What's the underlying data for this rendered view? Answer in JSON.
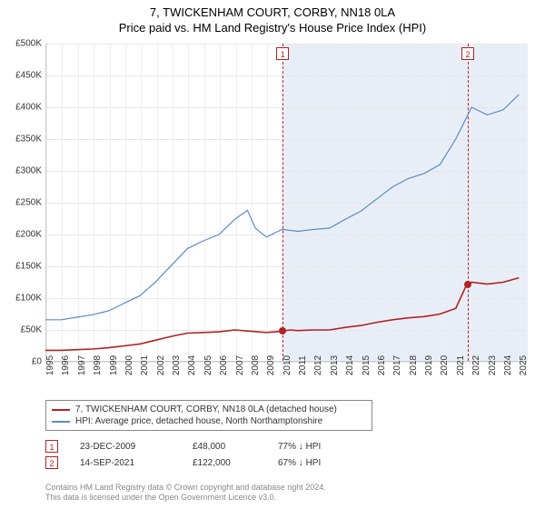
{
  "title": "7, TWICKENHAM COURT, CORBY, NN18 0LA",
  "subtitle": "Price paid vs. HM Land Registry's House Price Index (HPI)",
  "chart": {
    "type": "line",
    "background_color": "#ffffff",
    "shade_color": "#e8eef7",
    "grid_color": "#e6e6e6",
    "axis_color": "#cccccc",
    "x_min": 1995,
    "x_max": 2025.5,
    "x_ticks": [
      1995,
      1996,
      1997,
      1998,
      1999,
      2000,
      2001,
      2002,
      2003,
      2004,
      2005,
      2006,
      2007,
      2008,
      2009,
      2010,
      2011,
      2012,
      2013,
      2014,
      2015,
      2016,
      2017,
      2018,
      2019,
      2020,
      2021,
      2022,
      2023,
      2024,
      2025
    ],
    "y_min": 0,
    "y_max": 500000,
    "y_ticks": [
      0,
      50000,
      100000,
      150000,
      200000,
      250000,
      300000,
      350000,
      400000,
      450000,
      500000
    ],
    "y_tick_labels": [
      "£0",
      "£50K",
      "£100K",
      "£150K",
      "£200K",
      "£250K",
      "£300K",
      "£350K",
      "£400K",
      "£450K",
      "£500K"
    ],
    "shade_start_year": 2010,
    "shade_end_year": 2025.5,
    "label_fontsize": 10,
    "title_fontsize": 13,
    "series": [
      {
        "name": "hpi",
        "label": "HPI: Average price, detached house, North Northamptonshire",
        "color": "#5b8bc9",
        "width": 1.2,
        "points": [
          [
            1995,
            66000
          ],
          [
            1996,
            66000
          ],
          [
            1997,
            70000
          ],
          [
            1998,
            74000
          ],
          [
            1999,
            80000
          ],
          [
            2000,
            92000
          ],
          [
            2001,
            104000
          ],
          [
            2002,
            126000
          ],
          [
            2003,
            152000
          ],
          [
            2004,
            178000
          ],
          [
            2005,
            190000
          ],
          [
            2006,
            200000
          ],
          [
            2007,
            224000
          ],
          [
            2007.8,
            238000
          ],
          [
            2008.3,
            210000
          ],
          [
            2009,
            196000
          ],
          [
            2010,
            208000
          ],
          [
            2011,
            205000
          ],
          [
            2012,
            208000
          ],
          [
            2013,
            210000
          ],
          [
            2014,
            224000
          ],
          [
            2015,
            237000
          ],
          [
            2016,
            256000
          ],
          [
            2017,
            275000
          ],
          [
            2018,
            288000
          ],
          [
            2019,
            296000
          ],
          [
            2020,
            310000
          ],
          [
            2021,
            350000
          ],
          [
            2022,
            400000
          ],
          [
            2023,
            388000
          ],
          [
            2024,
            396000
          ],
          [
            2025,
            420000
          ]
        ]
      },
      {
        "name": "property",
        "label": "7, TWICKENHAM COURT, CORBY, NN18 0LA (detached house)",
        "color": "#b22222",
        "width": 1.6,
        "points": [
          [
            1995,
            18000
          ],
          [
            1996,
            18000
          ],
          [
            1997,
            19000
          ],
          [
            1998,
            20000
          ],
          [
            1999,
            22000
          ],
          [
            2000,
            25000
          ],
          [
            2001,
            28000
          ],
          [
            2002,
            34000
          ],
          [
            2003,
            40000
          ],
          [
            2004,
            45000
          ],
          [
            2005,
            46000
          ],
          [
            2006,
            47000
          ],
          [
            2007,
            50000
          ],
          [
            2008,
            48000
          ],
          [
            2009,
            46000
          ],
          [
            2009.98,
            48000
          ],
          [
            2010.5,
            50000
          ],
          [
            2011,
            49000
          ],
          [
            2012,
            50000
          ],
          [
            2013,
            50000
          ],
          [
            2014,
            54000
          ],
          [
            2015,
            57000
          ],
          [
            2016,
            62000
          ],
          [
            2017,
            66000
          ],
          [
            2018,
            69000
          ],
          [
            2019,
            71000
          ],
          [
            2020,
            75000
          ],
          [
            2021,
            84000
          ],
          [
            2021.7,
            122000
          ],
          [
            2022,
            125000
          ],
          [
            2023,
            122000
          ],
          [
            2024,
            125000
          ],
          [
            2025,
            132000
          ]
        ]
      }
    ],
    "sales": [
      {
        "n": "1",
        "year": 2009.98,
        "price": 48000,
        "date_label": "23-DEC-2009",
        "price_label": "£48,000",
        "pct_label": "77%  ↓  HPI"
      },
      {
        "n": "2",
        "year": 2021.7,
        "price": 122000,
        "date_label": "14-SEP-2021",
        "price_label": "£122,000",
        "pct_label": "67%  ↓  HPI"
      }
    ],
    "marker_border_color": "#b22222",
    "dot_color": "#b22222"
  },
  "footer": {
    "line1": "Contains HM Land Registry data © Crown copyright and database right 2024.",
    "line2": "This data is licensed under the Open Government Licence v3.0."
  }
}
